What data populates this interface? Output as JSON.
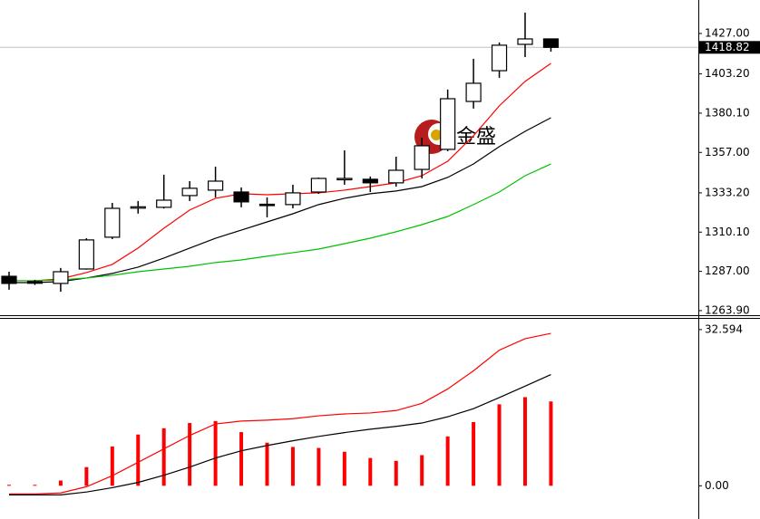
{
  "chart_data": [
    {
      "type": "candlestick",
      "watermark": "金盛",
      "up_color": "#ffffff",
      "down_color": "#000000",
      "candles": [
        {
          "open": 1284.1,
          "high": 1286.8,
          "low": 1276.2,
          "close": 1279.9
        },
        {
          "open": 1281.0,
          "high": 1282.0,
          "low": 1279.0,
          "close": 1280.0
        },
        {
          "open": 1279.9,
          "high": 1289.0,
          "low": 1275.0,
          "close": 1286.8
        },
        {
          "open": 1288.4,
          "high": 1306.5,
          "low": 1288.0,
          "close": 1305.5
        },
        {
          "open": 1307.1,
          "high": 1327.3,
          "low": 1306.0,
          "close": 1324.1
        },
        {
          "open": 1324.5,
          "high": 1328.4,
          "low": 1321.0,
          "close": 1325.0
        },
        {
          "open": 1324.7,
          "high": 1343.9,
          "low": 1324.0,
          "close": 1328.9
        },
        {
          "open": 1331.6,
          "high": 1340.1,
          "low": 1328.4,
          "close": 1335.9
        },
        {
          "open": 1334.8,
          "high": 1348.6,
          "low": 1330.5,
          "close": 1340.1
        },
        {
          "open": 1333.7,
          "high": 1336.4,
          "low": 1324.7,
          "close": 1327.9
        },
        {
          "open": 1326.5,
          "high": 1330.5,
          "low": 1318.8,
          "close": 1326.0
        },
        {
          "open": 1326.3,
          "high": 1338.0,
          "low": 1324.1,
          "close": 1333.2
        },
        {
          "open": 1333.7,
          "high": 1342.2,
          "low": 1332.6,
          "close": 1341.7
        },
        {
          "open": 1341.2,
          "high": 1358.2,
          "low": 1338.0,
          "close": 1341.7
        },
        {
          "open": 1341.2,
          "high": 1342.8,
          "low": 1333.7,
          "close": 1339.1
        },
        {
          "open": 1339.1,
          "high": 1354.5,
          "low": 1336.9,
          "close": 1346.5
        },
        {
          "open": 1347.0,
          "high": 1365.7,
          "low": 1341.7,
          "close": 1360.9
        },
        {
          "open": 1358.8,
          "high": 1394.0,
          "low": 1357.7,
          "close": 1388.6
        },
        {
          "open": 1387.0,
          "high": 1412.1,
          "low": 1382.8,
          "close": 1397.7
        },
        {
          "open": 1405.1,
          "high": 1421.7,
          "low": 1400.9,
          "close": 1420.1
        },
        {
          "open": 1420.6,
          "high": 1439.3,
          "low": 1413.1,
          "close": 1423.8
        },
        {
          "open": 1423.8,
          "high": 1423.8,
          "low": 1416.3,
          "close": 1418.82
        }
      ],
      "series": [
        {
          "color": "#ff0000",
          "values": [
            1281.5,
            1281.5,
            1282.6,
            1286.3,
            1291.1,
            1300.7,
            1312.4,
            1323.1,
            1330.0,
            1332.7,
            1332.1,
            1332.7,
            1333.2,
            1334.8,
            1336.9,
            1339.1,
            1343.3,
            1351.8,
            1366.8,
            1384.4,
            1398.8,
            1409.4
          ]
        },
        {
          "color": "#000000",
          "values": [
            1280.4,
            1280.4,
            1281.0,
            1283.1,
            1285.8,
            1289.5,
            1294.8,
            1300.7,
            1306.5,
            1311.3,
            1316.1,
            1320.9,
            1326.3,
            1330.0,
            1332.7,
            1334.3,
            1336.9,
            1342.3,
            1350.2,
            1360.4,
            1369.4,
            1377.4
          ]
        },
        {
          "color": "#00c000",
          "values": [
            1281.5,
            1281.5,
            1282.0,
            1283.1,
            1284.7,
            1286.8,
            1288.4,
            1290.0,
            1292.2,
            1293.7,
            1295.9,
            1298.0,
            1300.1,
            1303.3,
            1306.5,
            1310.3,
            1314.5,
            1319.3,
            1326.3,
            1333.7,
            1343.3,
            1350.2
          ]
        }
      ],
      "current_price": 1418.82,
      "ylim": [
        1261.2,
        1446.7
      ],
      "yticks": [
        {
          "value": 1427,
          "label": "1427.00"
        },
        {
          "value": 1403.2,
          "label": "1403.20"
        },
        {
          "value": 1380.1,
          "label": "1380.10"
        },
        {
          "value": 1357,
          "label": "1357.00"
        },
        {
          "value": 1333.2,
          "label": "1333.20"
        },
        {
          "value": 1310.1,
          "label": "1310.10"
        },
        {
          "value": 1287,
          "label": "1287.00"
        },
        {
          "value": 1263.9,
          "label": "1263.90"
        }
      ]
    },
    {
      "type": "bar",
      "color": "#ff0000",
      "values": [
        0.2,
        0.2,
        1.1,
        3.9,
        8.2,
        10.7,
        12.0,
        13.1,
        13.5,
        11.2,
        9.0,
        8.1,
        7.9,
        7.1,
        5.8,
        5.2,
        6.4,
        10.3,
        13.3,
        17.0,
        18.5,
        17.6
      ],
      "series": [
        {
          "color": "#ff0000",
          "values": [
            -1.7,
            -1.7,
            -1.5,
            -0.2,
            2.1,
            4.9,
            7.7,
            10.5,
            12.9,
            13.5,
            13.7,
            14.0,
            14.6,
            15.0,
            15.2,
            15.7,
            17.2,
            20.2,
            24.0,
            28.3,
            30.7,
            31.8
          ]
        },
        {
          "color": "#000000",
          "values": [
            -1.9,
            -1.9,
            -1.9,
            -1.3,
            -0.4,
            0.7,
            2.2,
            3.9,
            5.8,
            7.3,
            8.4,
            9.4,
            10.3,
            11.1,
            11.8,
            12.4,
            13.1,
            14.4,
            16.1,
            18.4,
            20.8,
            23.2
          ]
        }
      ],
      "ylim": [
        -6.93,
        34.84
      ],
      "yticks": [
        32.594,
        {
          "value": 0,
          "label": "0.00"
        }
      ]
    }
  ]
}
